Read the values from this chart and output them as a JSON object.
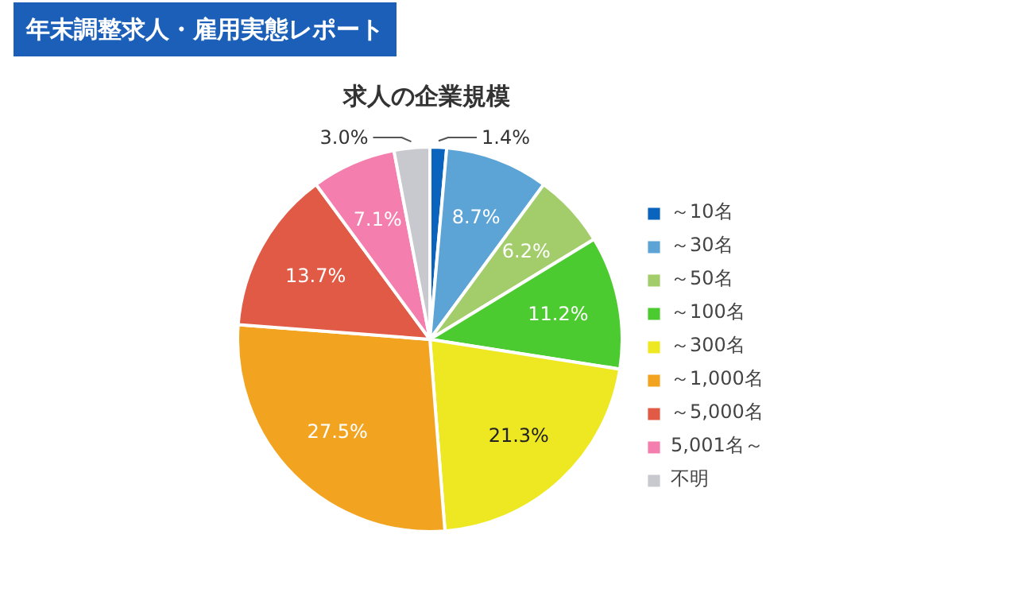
{
  "chart_data": {
    "type": "pie",
    "title": "年末調整求人・雇用実態レポート",
    "subtitle": "求人の企業規模",
    "categories": [
      "～10名",
      "～30名",
      "～50名",
      "～100名",
      "～300名",
      "～1,000名",
      "～5,000名",
      "5,001名～",
      "不明"
    ],
    "values": [
      1.4,
      8.7,
      6.2,
      11.2,
      21.3,
      27.5,
      13.7,
      7.1,
      3.0
    ],
    "colors": [
      "#0a64be",
      "#5ca3d6",
      "#a3cc6b",
      "#4ccb30",
      "#eee823",
      "#f2a421",
      "#e05a45",
      "#f47fae",
      "#c8c9ce"
    ],
    "value_labels": [
      "1.4%",
      "8.7%",
      "6.2%",
      "11.2%",
      "21.3%",
      "27.5%",
      "13.7%",
      "7.1%",
      "3.0%"
    ],
    "legend": "right"
  }
}
